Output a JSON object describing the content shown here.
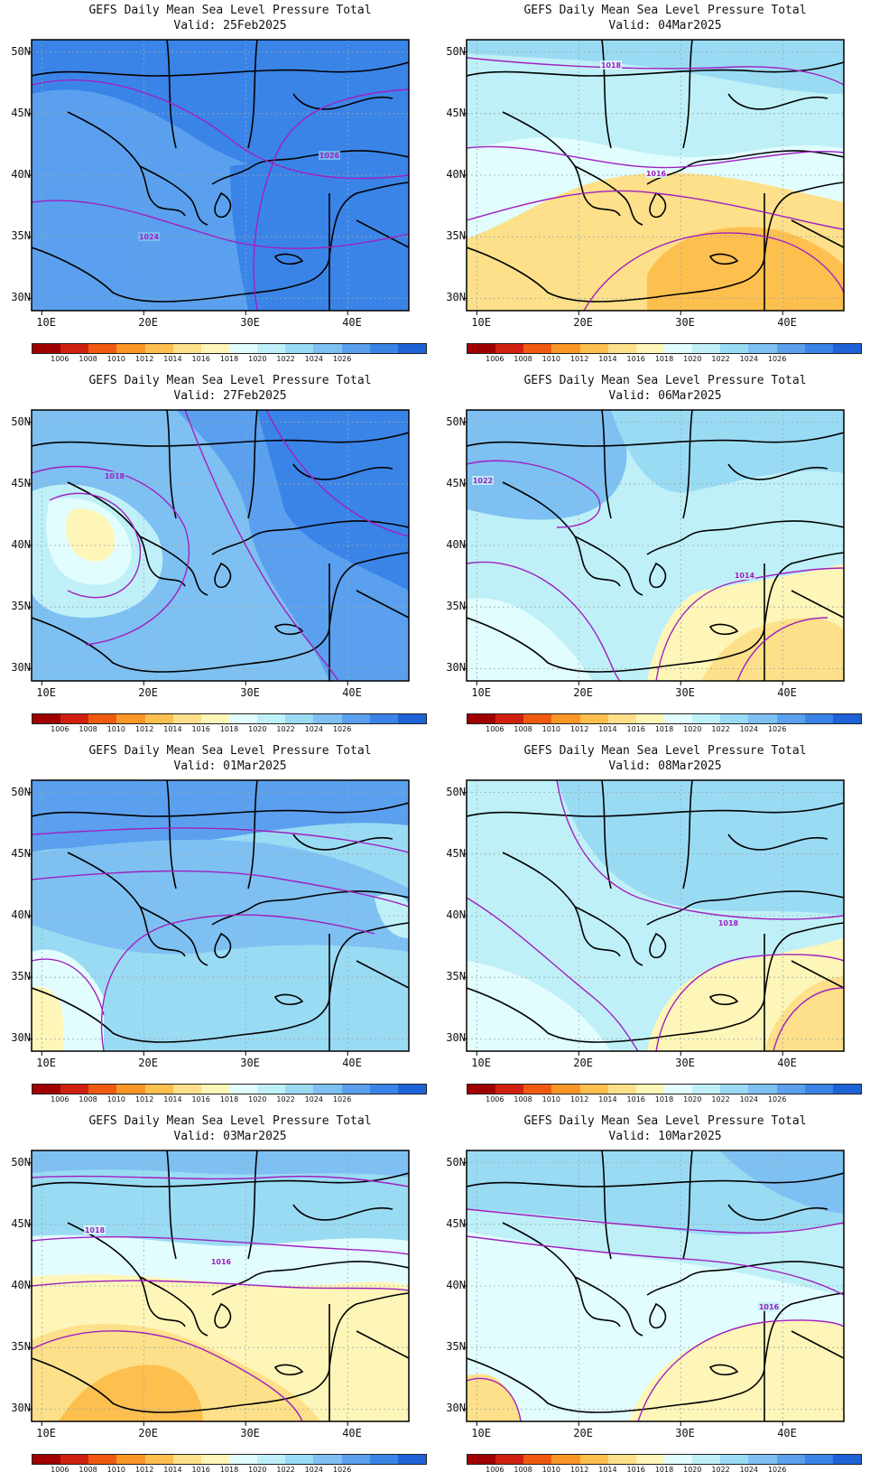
{
  "map": {
    "title": "GEFS Daily Mean Sea Level Pressure Total",
    "lat_labels": [
      "50N",
      "45N",
      "40N",
      "35N",
      "30N"
    ],
    "lon_labels": [
      "10E",
      "20E",
      "30E",
      "40E"
    ],
    "colorbar": {
      "labels": [
        "1006",
        "1008",
        "1010",
        "1012",
        "1014",
        "1016",
        "1018",
        "1020",
        "1022",
        "1024",
        "1026"
      ],
      "colors": [
        "#a00000",
        "#d02010",
        "#f05a10",
        "#fa9626",
        "#fdbf4e",
        "#fde089",
        "#fef6b8",
        "#e2fdfe",
        "#bff0f8",
        "#9adbf4",
        "#7ec0f2",
        "#5aa0ee",
        "#3a84e8",
        "#1e62d8"
      ]
    },
    "panels": [
      {
        "valid": "Valid: 25Feb2025",
        "isobars": [
          "1024",
          "1026"
        ]
      },
      {
        "valid": "Valid: 04Mar2025",
        "isobars": [
          "1018",
          "1016"
        ]
      },
      {
        "valid": "Valid: 27Feb2025",
        "isobars": [
          "1018"
        ]
      },
      {
        "valid": "Valid: 06Mar2025",
        "isobars": [
          "1022",
          "1014"
        ]
      },
      {
        "valid": "Valid: 01Mar2025",
        "isobars": []
      },
      {
        "valid": "Valid: 08Mar2025",
        "isobars": [
          "1018"
        ]
      },
      {
        "valid": "Valid: 03Mar2025",
        "isobars": [
          "1018",
          "1016"
        ]
      },
      {
        "valid": "Valid: 10Mar2025",
        "isobars": [
          "1016"
        ]
      }
    ]
  }
}
